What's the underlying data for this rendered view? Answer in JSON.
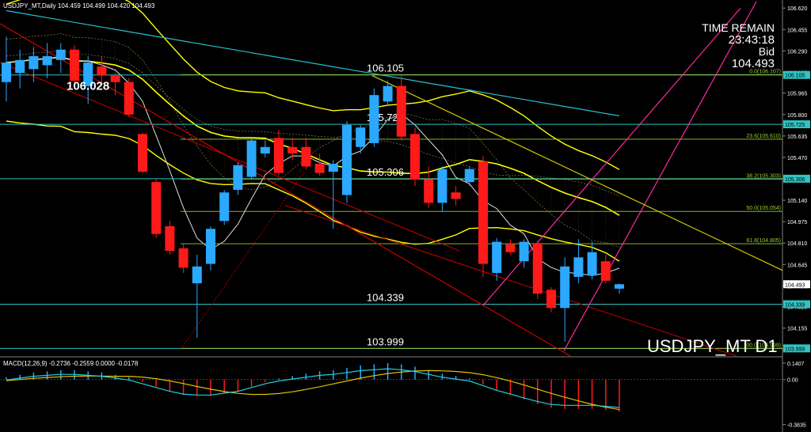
{
  "header": {
    "title": "USDJPY_MT,Daily",
    "ohlc": "104.459 104.499 104.420 104.493"
  },
  "info": {
    "label": "TIME REMAIN",
    "timer": "23:43:18",
    "bid_label": "Bid",
    "bid_value": "104.493"
  },
  "symbol_label": "USDJPY_MT D1",
  "macd_header": "MACD(12,26,9) -0.2736 -0.2559 0.0000 -0.0178",
  "colors": {
    "bull": "#2ba8ff",
    "bear": "#ff1a1a",
    "hline": "#2ec4c4",
    "fib": "#9acd32",
    "band": "#ffff00",
    "ma": "#e0e0e0",
    "slow": "#20c0d0",
    "channel": "#cc0000",
    "trend_up": "#ff2aa0",
    "trend_down": "#d4c800",
    "macd_signal": "#e0c000",
    "macd_main": "#20d0e0",
    "axis_text": "#ffffff"
  },
  "chart_data": {
    "type": "candlestick",
    "symbol": "USDJPY_MT",
    "timeframe": "Daily",
    "ylim": [
      103.94,
      106.67
    ],
    "price_axis_ticks": [
      106.62,
      106.455,
      106.29,
      106.125,
      105.965,
      105.8,
      105.635,
      105.47,
      105.31,
      105.14,
      104.975,
      104.81,
      104.645,
      104.48,
      104.32,
      104.155,
      103.99
    ],
    "price_axis_labels": [
      "106.620",
      "106.455",
      "106.290",
      "106.125",
      "105.965",
      "105.800",
      "105.635",
      "105.470",
      "105.310",
      "105.140",
      "104.975",
      "104.810",
      "104.645",
      "104.493",
      "104.320",
      "104.155",
      "103.990"
    ],
    "candles": [
      {
        "o": 106.05,
        "h": 106.4,
        "l": 105.9,
        "c": 106.2
      },
      {
        "o": 106.12,
        "h": 106.3,
        "l": 106.0,
        "c": 106.22
      },
      {
        "o": 106.15,
        "h": 106.32,
        "l": 106.05,
        "c": 106.25
      },
      {
        "o": 106.18,
        "h": 106.35,
        "l": 106.08,
        "c": 106.25
      },
      {
        "o": 106.22,
        "h": 106.35,
        "l": 106.12,
        "c": 106.3
      },
      {
        "o": 106.3,
        "h": 106.33,
        "l": 106.0,
        "c": 106.06
      },
      {
        "o": 106.02,
        "h": 106.25,
        "l": 105.88,
        "c": 106.2
      },
      {
        "o": 106.17,
        "h": 106.25,
        "l": 106.05,
        "c": 106.1
      },
      {
        "o": 106.1,
        "h": 106.12,
        "l": 105.95,
        "c": 106.05
      },
      {
        "o": 106.05,
        "h": 106.08,
        "l": 105.78,
        "c": 105.8
      },
      {
        "o": 105.65,
        "h": 105.66,
        "l": 105.35,
        "c": 105.36
      },
      {
        "o": 105.28,
        "h": 105.3,
        "l": 104.85,
        "c": 104.88
      },
      {
        "o": 104.94,
        "h": 104.98,
        "l": 104.72,
        "c": 104.75
      },
      {
        "o": 104.77,
        "h": 104.8,
        "l": 104.58,
        "c": 104.62
      },
      {
        "o": 104.5,
        "h": 104.72,
        "l": 104.08,
        "c": 104.63
      },
      {
        "o": 104.65,
        "h": 104.94,
        "l": 104.6,
        "c": 104.92
      },
      {
        "o": 104.98,
        "h": 105.22,
        "l": 104.95,
        "c": 105.2
      },
      {
        "o": 105.22,
        "h": 105.43,
        "l": 105.18,
        "c": 105.41
      },
      {
        "o": 105.32,
        "h": 105.62,
        "l": 105.3,
        "c": 105.6
      },
      {
        "o": 105.5,
        "h": 105.6,
        "l": 105.47,
        "c": 105.55
      },
      {
        "o": 105.62,
        "h": 105.68,
        "l": 105.33,
        "c": 105.35
      },
      {
        "o": 105.55,
        "h": 105.62,
        "l": 105.45,
        "c": 105.5
      },
      {
        "o": 105.55,
        "h": 105.62,
        "l": 105.38,
        "c": 105.4
      },
      {
        "o": 105.42,
        "h": 105.5,
        "l": 105.33,
        "c": 105.35
      },
      {
        "o": 105.36,
        "h": 105.45,
        "l": 104.92,
        "c": 105.42
      },
      {
        "o": 105.18,
        "h": 105.75,
        "l": 105.12,
        "c": 105.72
      },
      {
        "o": 105.55,
        "h": 105.72,
        "l": 105.5,
        "c": 105.7
      },
      {
        "o": 105.58,
        "h": 106.0,
        "l": 105.55,
        "c": 105.95
      },
      {
        "o": 105.9,
        "h": 106.06,
        "l": 105.88,
        "c": 106.02
      },
      {
        "o": 106.02,
        "h": 106.1,
        "l": 105.6,
        "c": 105.63
      },
      {
        "o": 105.65,
        "h": 105.7,
        "l": 105.25,
        "c": 105.3
      },
      {
        "o": 105.3,
        "h": 105.4,
        "l": 105.08,
        "c": 105.12
      },
      {
        "o": 105.12,
        "h": 105.4,
        "l": 105.05,
        "c": 105.38
      },
      {
        "o": 105.2,
        "h": 105.25,
        "l": 105.1,
        "c": 105.15
      },
      {
        "o": 105.28,
        "h": 105.4,
        "l": 105.25,
        "c": 105.38
      },
      {
        "o": 105.44,
        "h": 105.48,
        "l": 104.55,
        "c": 104.65
      },
      {
        "o": 104.58,
        "h": 104.85,
        "l": 104.52,
        "c": 104.82
      },
      {
        "o": 104.8,
        "h": 104.84,
        "l": 104.72,
        "c": 104.74
      },
      {
        "o": 104.67,
        "h": 104.84,
        "l": 104.62,
        "c": 104.82
      },
      {
        "o": 104.81,
        "h": 104.83,
        "l": 104.38,
        "c": 104.42
      },
      {
        "o": 104.45,
        "h": 104.47,
        "l": 104.28,
        "c": 104.31
      },
      {
        "o": 104.31,
        "h": 104.7,
        "l": 104.05,
        "c": 104.63
      },
      {
        "o": 104.55,
        "h": 104.84,
        "l": 104.5,
        "c": 104.7
      },
      {
        "o": 104.56,
        "h": 104.82,
        "l": 104.53,
        "c": 104.74
      },
      {
        "o": 104.67,
        "h": 104.72,
        "l": 104.5,
        "c": 104.52
      },
      {
        "o": 104.459,
        "h": 104.499,
        "l": 104.42,
        "c": 104.493
      }
    ],
    "horizontal_levels": [
      {
        "price": 106.105,
        "label": "106.105",
        "tag": "106.105"
      },
      {
        "price": 105.725,
        "label": "105.725",
        "tag": "105.725"
      },
      {
        "price": 105.306,
        "label": "105.306",
        "tag": "105.306"
      },
      {
        "price": 104.339,
        "label": "104.339",
        "tag": "104.339"
      },
      {
        "price": 103.999,
        "label": "103.999",
        "tag": "103.999"
      }
    ],
    "fibonacci": [
      {
        "price": 106.107,
        "label": "0.0(106.107)"
      },
      {
        "price": 105.61,
        "label": "23.6(105.610)"
      },
      {
        "price": 105.303,
        "label": "38.2(105.303)"
      },
      {
        "price": 105.054,
        "label": "50.0(105.054)"
      },
      {
        "price": 104.805,
        "label": "61.8(104.805)"
      },
      {
        "price": 103.999,
        "label": "100.0(103.999)"
      }
    ],
    "price_annotation": {
      "price": 106.028,
      "label": "106.028"
    },
    "macd": {
      "ylim": [
        -0.42,
        0.16
      ],
      "ticks": [
        0.1407,
        0.0,
        -0.3835
      ],
      "tick_labels": [
        "0.1407",
        "0.00",
        "-0.3835"
      ],
      "histogram": [
        0.02,
        0.04,
        0.06,
        0.07,
        0.08,
        0.08,
        0.07,
        0.06,
        0.04,
        0.02,
        -0.02,
        -0.06,
        -0.1,
        -0.13,
        -0.14,
        -0.14,
        -0.12,
        -0.1,
        -0.06,
        -0.02,
        0.01,
        0.03,
        0.05,
        0.07,
        0.08,
        0.1,
        0.12,
        0.13,
        0.14,
        0.13,
        0.11,
        0.08,
        0.05,
        0.03,
        0.01,
        -0.04,
        -0.09,
        -0.13,
        -0.17,
        -0.21,
        -0.24,
        -0.25,
        -0.25,
        -0.25,
        -0.26,
        -0.2736
      ]
    }
  }
}
